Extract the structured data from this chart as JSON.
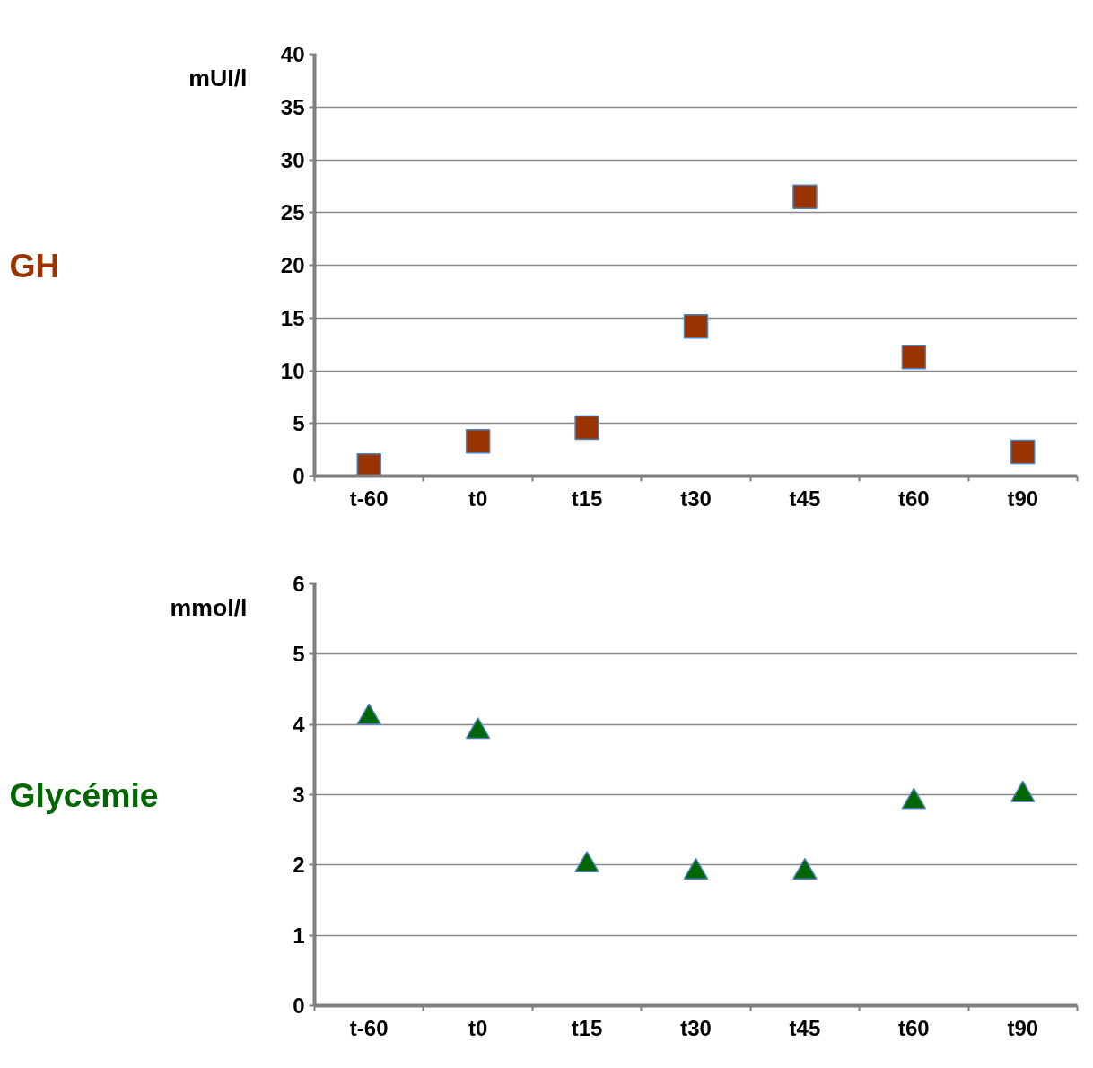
{
  "chart_data": [
    {
      "type": "scatter",
      "ylabel": "mUI/l",
      "categories": [
        "t-60",
        "t0",
        "t15",
        "t30",
        "t45",
        "t60",
        "t90"
      ],
      "series": [
        {
          "name": "GH",
          "color": "#993300",
          "values": [
            1.0,
            3.3,
            4.6,
            14.2,
            26.5,
            11.3,
            2.3
          ]
        }
      ],
      "ylim": [
        0,
        40
      ],
      "yticks": [
        0,
        5,
        10,
        15,
        20,
        25,
        30,
        35,
        40
      ],
      "grid": "y",
      "marker": "square"
    },
    {
      "type": "scatter",
      "ylabel": "mmol/l",
      "categories": [
        "t-60",
        "t0",
        "t15",
        "t30",
        "t45",
        "t60",
        "t90"
      ],
      "series": [
        {
          "name": "Glycémie",
          "color": "#006600",
          "values": [
            4.1,
            3.9,
            2.0,
            1.9,
            1.9,
            2.9,
            3.0
          ]
        }
      ],
      "ylim": [
        0,
        6
      ],
      "yticks": [
        0,
        1,
        2,
        3,
        4,
        5,
        6
      ],
      "grid": "y",
      "marker": "triangle"
    }
  ]
}
